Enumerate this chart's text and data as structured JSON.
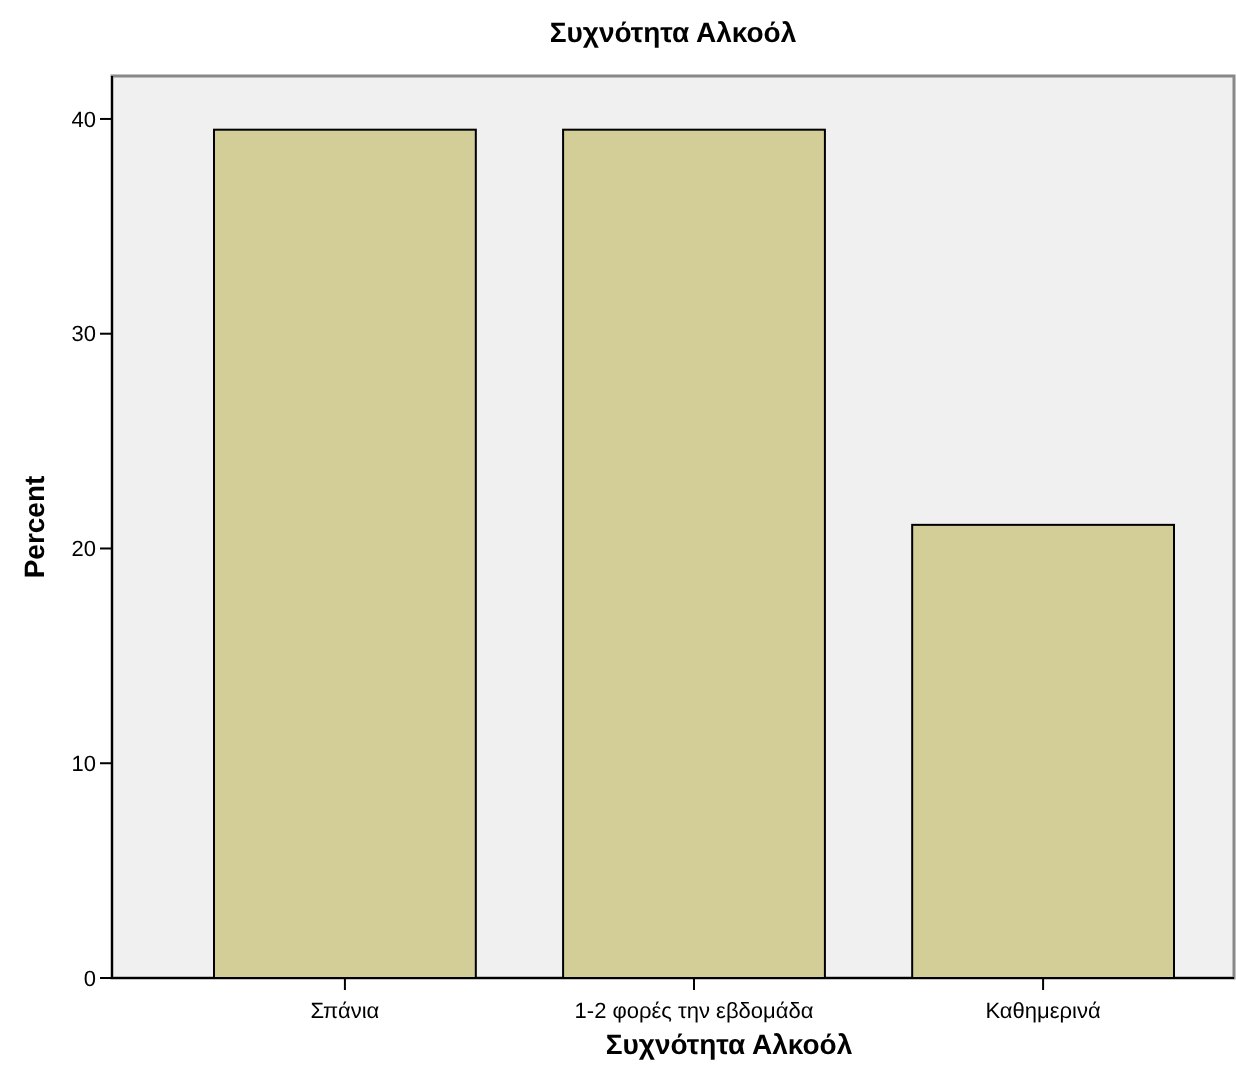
{
  "chart_data": {
    "type": "bar",
    "title": "Συχνότητα Αλκοόλ",
    "xlabel": "Συχνότητα Αλκοόλ",
    "ylabel": "Percent",
    "categories": [
      "Σπάνια",
      "1-2 φορές την εβδομάδα",
      "Καθημερινά"
    ],
    "values": [
      39.5,
      39.5,
      21.1
    ],
    "color": "#d3ce97",
    "ylim": [
      0,
      42
    ],
    "yticks": [
      0,
      10,
      20,
      30,
      40
    ],
    "grid": false
  }
}
